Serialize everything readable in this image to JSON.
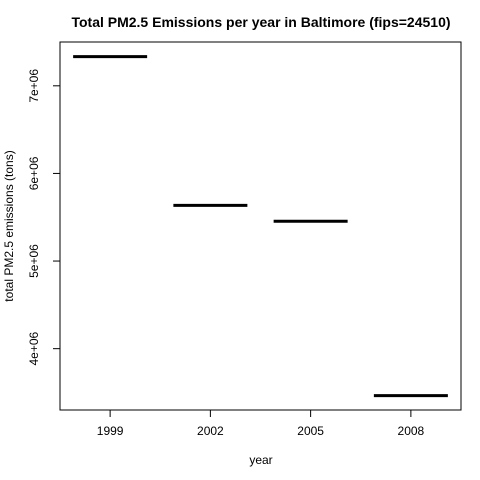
{
  "chart_data": {
    "type": "bar",
    "title": "Total PM2.5 Emissions per year in Baltimore (fips=24510)",
    "xlabel": "year",
    "ylabel": "total PM2.5 emissions (tons)",
    "categories": [
      "1999",
      "2002",
      "2005",
      "2008"
    ],
    "values": [
      7332967,
      5635780,
      5454703,
      3464206
    ],
    "ylim": [
      3300000,
      7500000
    ],
    "yticks": [
      4000000,
      5000000,
      6000000,
      7000000
    ],
    "ytick_labels": [
      "4e+06",
      "5e+06",
      "6e+06",
      "7e+06"
    ],
    "grid": false,
    "legend": "none",
    "mark_style": "horizontal level segments",
    "line_color": "#000000"
  }
}
